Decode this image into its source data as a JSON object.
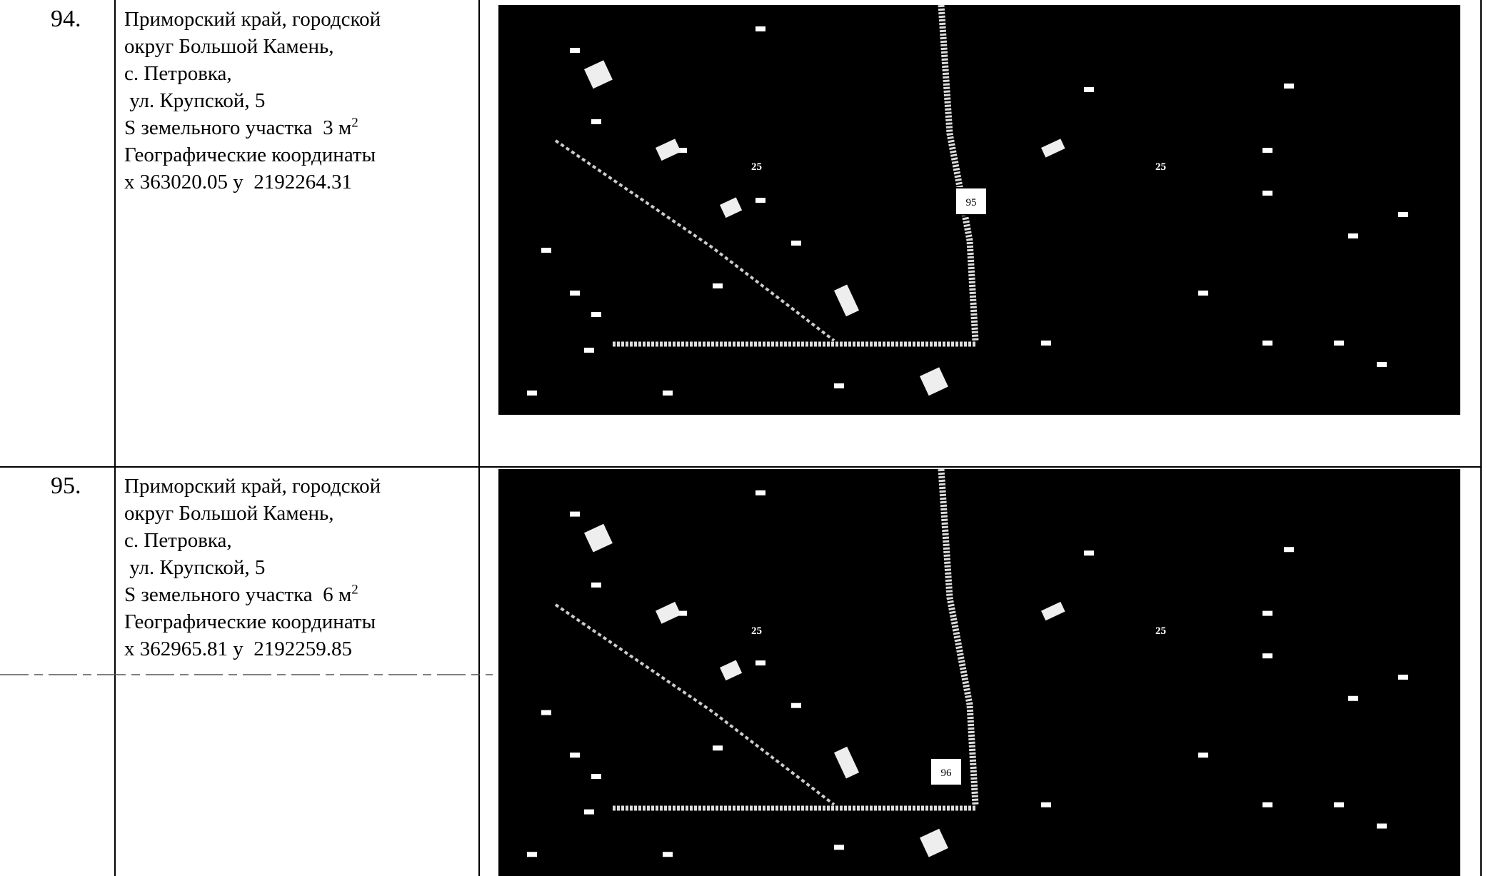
{
  "table": {
    "rows": [
      {
        "number": "94.",
        "lines": [
          "Приморский край, городской",
          "округ Большой Камень,",
          "с. Петровка,",
          " ул. Крупской, 5",
          "S земельного участка  3 м",
          "Географические координаты",
          "x 363020.05 y  2192264.31"
        ],
        "area_superscript": "2",
        "map_labels": [
          "25",
          "25",
          "95"
        ]
      },
      {
        "number": "95.",
        "lines": [
          "Приморский край, городской",
          "округ Большой Камень,",
          "с. Петровка,",
          " ул. Крупской, 5",
          "S земельного участка  6 м",
          "Географические координаты",
          "x 362965.81 y  2192259.85"
        ],
        "area_superscript": "2",
        "map_labels": [
          "25",
          "25",
          "96"
        ]
      }
    ]
  }
}
